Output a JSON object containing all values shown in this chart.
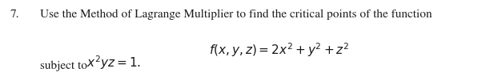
{
  "background_color": "#ffffff",
  "number": "7.",
  "line1": "Use the Method of Lagrange Multiplier to find the critical points of the function",
  "line2": "$f(x, y, z) = 2x^2 + y^2 + z^2$",
  "line3_a": "subject to ",
  "line3_b": "$x^2yz = 1$.",
  "fontsize_body": 11.0,
  "text_color": "#1a1a1a",
  "fig_width": 6.22,
  "fig_height": 0.96,
  "dpi": 100
}
